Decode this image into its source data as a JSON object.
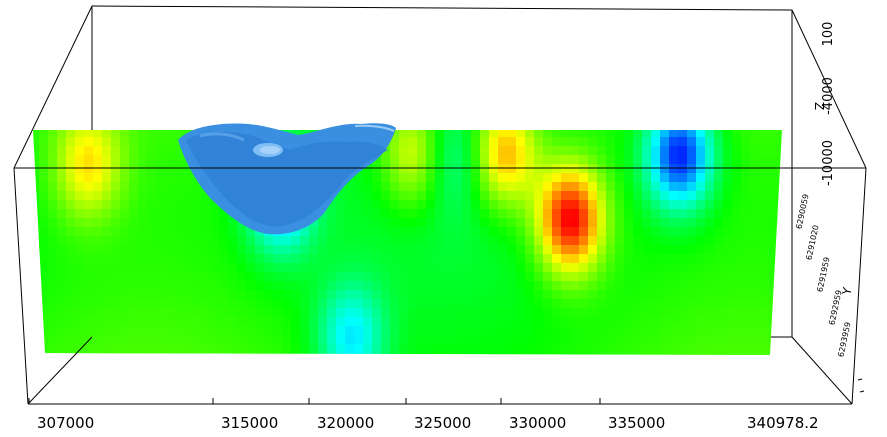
{
  "chart_data": {
    "type": "heatmap",
    "title": "",
    "x": {
      "ticks": [
        "307000",
        "315000",
        "320000",
        "325000",
        "330000",
        "335000",
        "340978.2"
      ],
      "range": [
        307000,
        340978.2
      ]
    },
    "z": {
      "label": "Z",
      "ticks": [
        "100",
        "-4000",
        "-10000"
      ],
      "range": [
        -10000,
        100
      ]
    },
    "y": {
      "label": "Y",
      "ticks": [
        "6290059",
        "6291020",
        "6291959",
        "6292959",
        "6293959"
      ]
    },
    "colormap": [
      "#0000ff",
      "#00ffff",
      "#00ff00",
      "#ffff00",
      "#ff0000"
    ],
    "isosurface_color": "#3a8fe0",
    "anomalies": [
      {
        "kind": "low",
        "x": 318300,
        "z": -3000,
        "strength": 0.75
      },
      {
        "kind": "low",
        "x": 321500,
        "z": -9500,
        "strength": 0.55
      },
      {
        "kind": "high",
        "x": 331500,
        "z": -4000,
        "strength": 1.05
      },
      {
        "kind": "high",
        "x": 328500,
        "z": -1000,
        "strength": 0.7
      },
      {
        "kind": "high",
        "x": 324500,
        "z": -1000,
        "strength": 0.55
      },
      {
        "kind": "high",
        "x": 309500,
        "z": -1500,
        "strength": 0.5
      },
      {
        "kind": "low",
        "x": 336500,
        "z": -1000,
        "strength": 1.0
      },
      {
        "kind": "low",
        "x": 326000,
        "z": -1000,
        "strength": 0.35
      }
    ]
  }
}
